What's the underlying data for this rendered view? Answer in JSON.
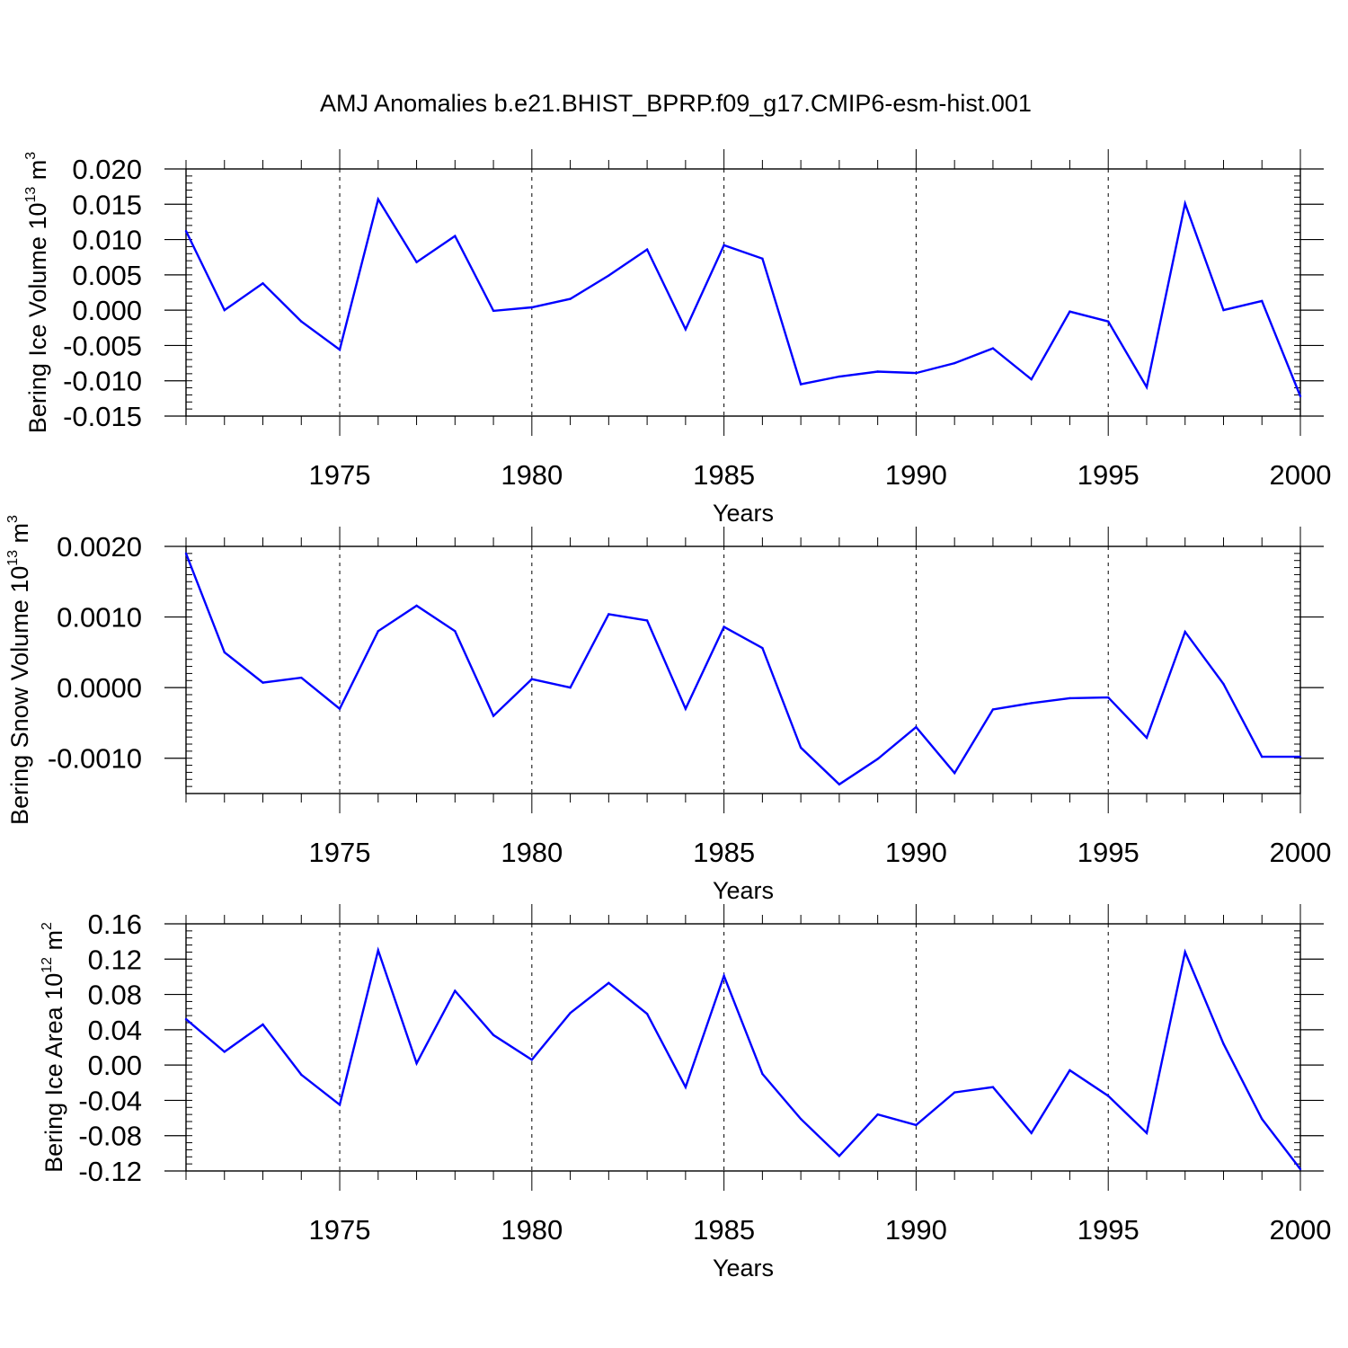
{
  "title": "AMJ Anomalies b.e21.BHIST_BPRP.f09_g17.CMIP6-esm-hist.001",
  "line_color": "#0000ff",
  "chart_data": [
    {
      "type": "line",
      "name": "ice-volume",
      "ylabel_main": "Bering Ice Volume 10",
      "ylabel_exp": "13",
      "ylabel_unit": " m",
      "ylabel_unit_exp": "3",
      "xlabel": "Years",
      "xlim": [
        1971,
        2000
      ],
      "ylim": [
        -0.015,
        0.02
      ],
      "yticks": [
        -0.015,
        -0.01,
        -0.005,
        0.0,
        0.005,
        0.01,
        0.015,
        0.02
      ],
      "yticklabels": [
        "-0.015",
        "-0.010",
        "-0.005",
        "0.000",
        "0.005",
        "0.010",
        "0.015",
        "0.020"
      ],
      "yminor": 0.001,
      "xticks": [
        1975,
        1980,
        1985,
        1990,
        1995,
        2000
      ],
      "xticklabels": [
        "1975",
        "1980",
        "1985",
        "1990",
        "1995",
        "2000"
      ],
      "x": [
        1971,
        1972,
        1973,
        1974,
        1975,
        1976,
        1977,
        1978,
        1979,
        1980,
        1981,
        1982,
        1983,
        1984,
        1985,
        1986,
        1987,
        1988,
        1989,
        1990,
        1991,
        1992,
        1993,
        1994,
        1995,
        1996,
        1997,
        1998,
        1999,
        2000
      ],
      "values": [
        0.0112,
        0.0,
        0.0038,
        -0.0016,
        -0.0056,
        0.0157,
        0.0068,
        0.0105,
        -0.0001,
        0.0004,
        0.0016,
        0.0049,
        0.0086,
        -0.0027,
        0.0092,
        0.0073,
        -0.0105,
        -0.0094,
        -0.0087,
        -0.0089,
        -0.0075,
        -0.0054,
        -0.0098,
        -0.0002,
        -0.0016,
        -0.0109,
        0.0151,
        0.0,
        0.0013,
        -0.0122
      ]
    },
    {
      "type": "line",
      "name": "snow-volume",
      "ylabel_main": "Bering Snow Volume 10",
      "ylabel_exp": "13",
      "ylabel_unit": " m",
      "ylabel_unit_exp": "3",
      "xlabel": "Years",
      "xlim": [
        1971,
        2000
      ],
      "ylim": [
        -0.0015,
        0.002
      ],
      "yticks": [
        -0.001,
        0.0,
        0.001,
        0.002
      ],
      "yticklabels": [
        "-0.0010",
        "0.0000",
        "0.0010",
        "0.0020"
      ],
      "yminor": 0.0001,
      "xticks": [
        1975,
        1980,
        1985,
        1990,
        1995,
        2000
      ],
      "xticklabels": [
        "1975",
        "1980",
        "1985",
        "1990",
        "1995",
        "2000"
      ],
      "x": [
        1971,
        1972,
        1973,
        1974,
        1975,
        1976,
        1977,
        1978,
        1979,
        1980,
        1981,
        1982,
        1983,
        1984,
        1985,
        1986,
        1987,
        1988,
        1989,
        1990,
        1991,
        1992,
        1993,
        1994,
        1995,
        1996,
        1997,
        1998,
        1999,
        2000
      ],
      "values": [
        0.0019,
        0.0005,
        7e-05,
        0.00014,
        -0.0003,
        0.0008,
        0.00116,
        0.0008,
        -0.0004,
        0.00012,
        0.0,
        0.00104,
        0.00095,
        -0.0003,
        0.00086,
        0.00056,
        -0.00085,
        -0.00137,
        -0.00101,
        -0.00056,
        -0.00121,
        -0.00031,
        -0.00022,
        -0.00015,
        -0.00014,
        -0.00071,
        0.00079,
        5e-05,
        -0.00098,
        -0.00098
      ]
    },
    {
      "type": "line",
      "name": "ice-area",
      "ylabel_main": "Bering Ice Area 10",
      "ylabel_exp": "12",
      "ylabel_unit": " m",
      "ylabel_unit_exp": "2",
      "xlabel": "Years",
      "xlim": [
        1971,
        2000
      ],
      "ylim": [
        -0.12,
        0.16
      ],
      "yticks": [
        -0.12,
        -0.08,
        -0.04,
        0.0,
        0.04,
        0.08,
        0.12,
        0.16
      ],
      "yticklabels": [
        "-0.12",
        "-0.08",
        "-0.04",
        "0.00",
        "0.04",
        "0.08",
        "0.12",
        "0.16"
      ],
      "yminor": 0.008,
      "xticks": [
        1975,
        1980,
        1985,
        1990,
        1995,
        2000
      ],
      "xticklabels": [
        "1975",
        "1980",
        "1985",
        "1990",
        "1995",
        "2000"
      ],
      "x": [
        1971,
        1972,
        1973,
        1974,
        1975,
        1976,
        1977,
        1978,
        1979,
        1980,
        1981,
        1982,
        1983,
        1984,
        1985,
        1986,
        1987,
        1988,
        1989,
        1990,
        1991,
        1992,
        1993,
        1994,
        1995,
        1996,
        1997,
        1998,
        1999,
        2000
      ],
      "values": [
        0.052,
        0.015,
        0.046,
        -0.011,
        -0.045,
        0.13,
        0.002,
        0.084,
        0.034,
        0.006,
        0.059,
        0.093,
        0.058,
        -0.025,
        0.101,
        -0.01,
        -0.061,
        -0.103,
        -0.056,
        -0.068,
        -0.031,
        -0.025,
        -0.077,
        -0.006,
        -0.035,
        -0.077,
        0.128,
        0.024,
        -0.061,
        -0.118
      ]
    }
  ]
}
